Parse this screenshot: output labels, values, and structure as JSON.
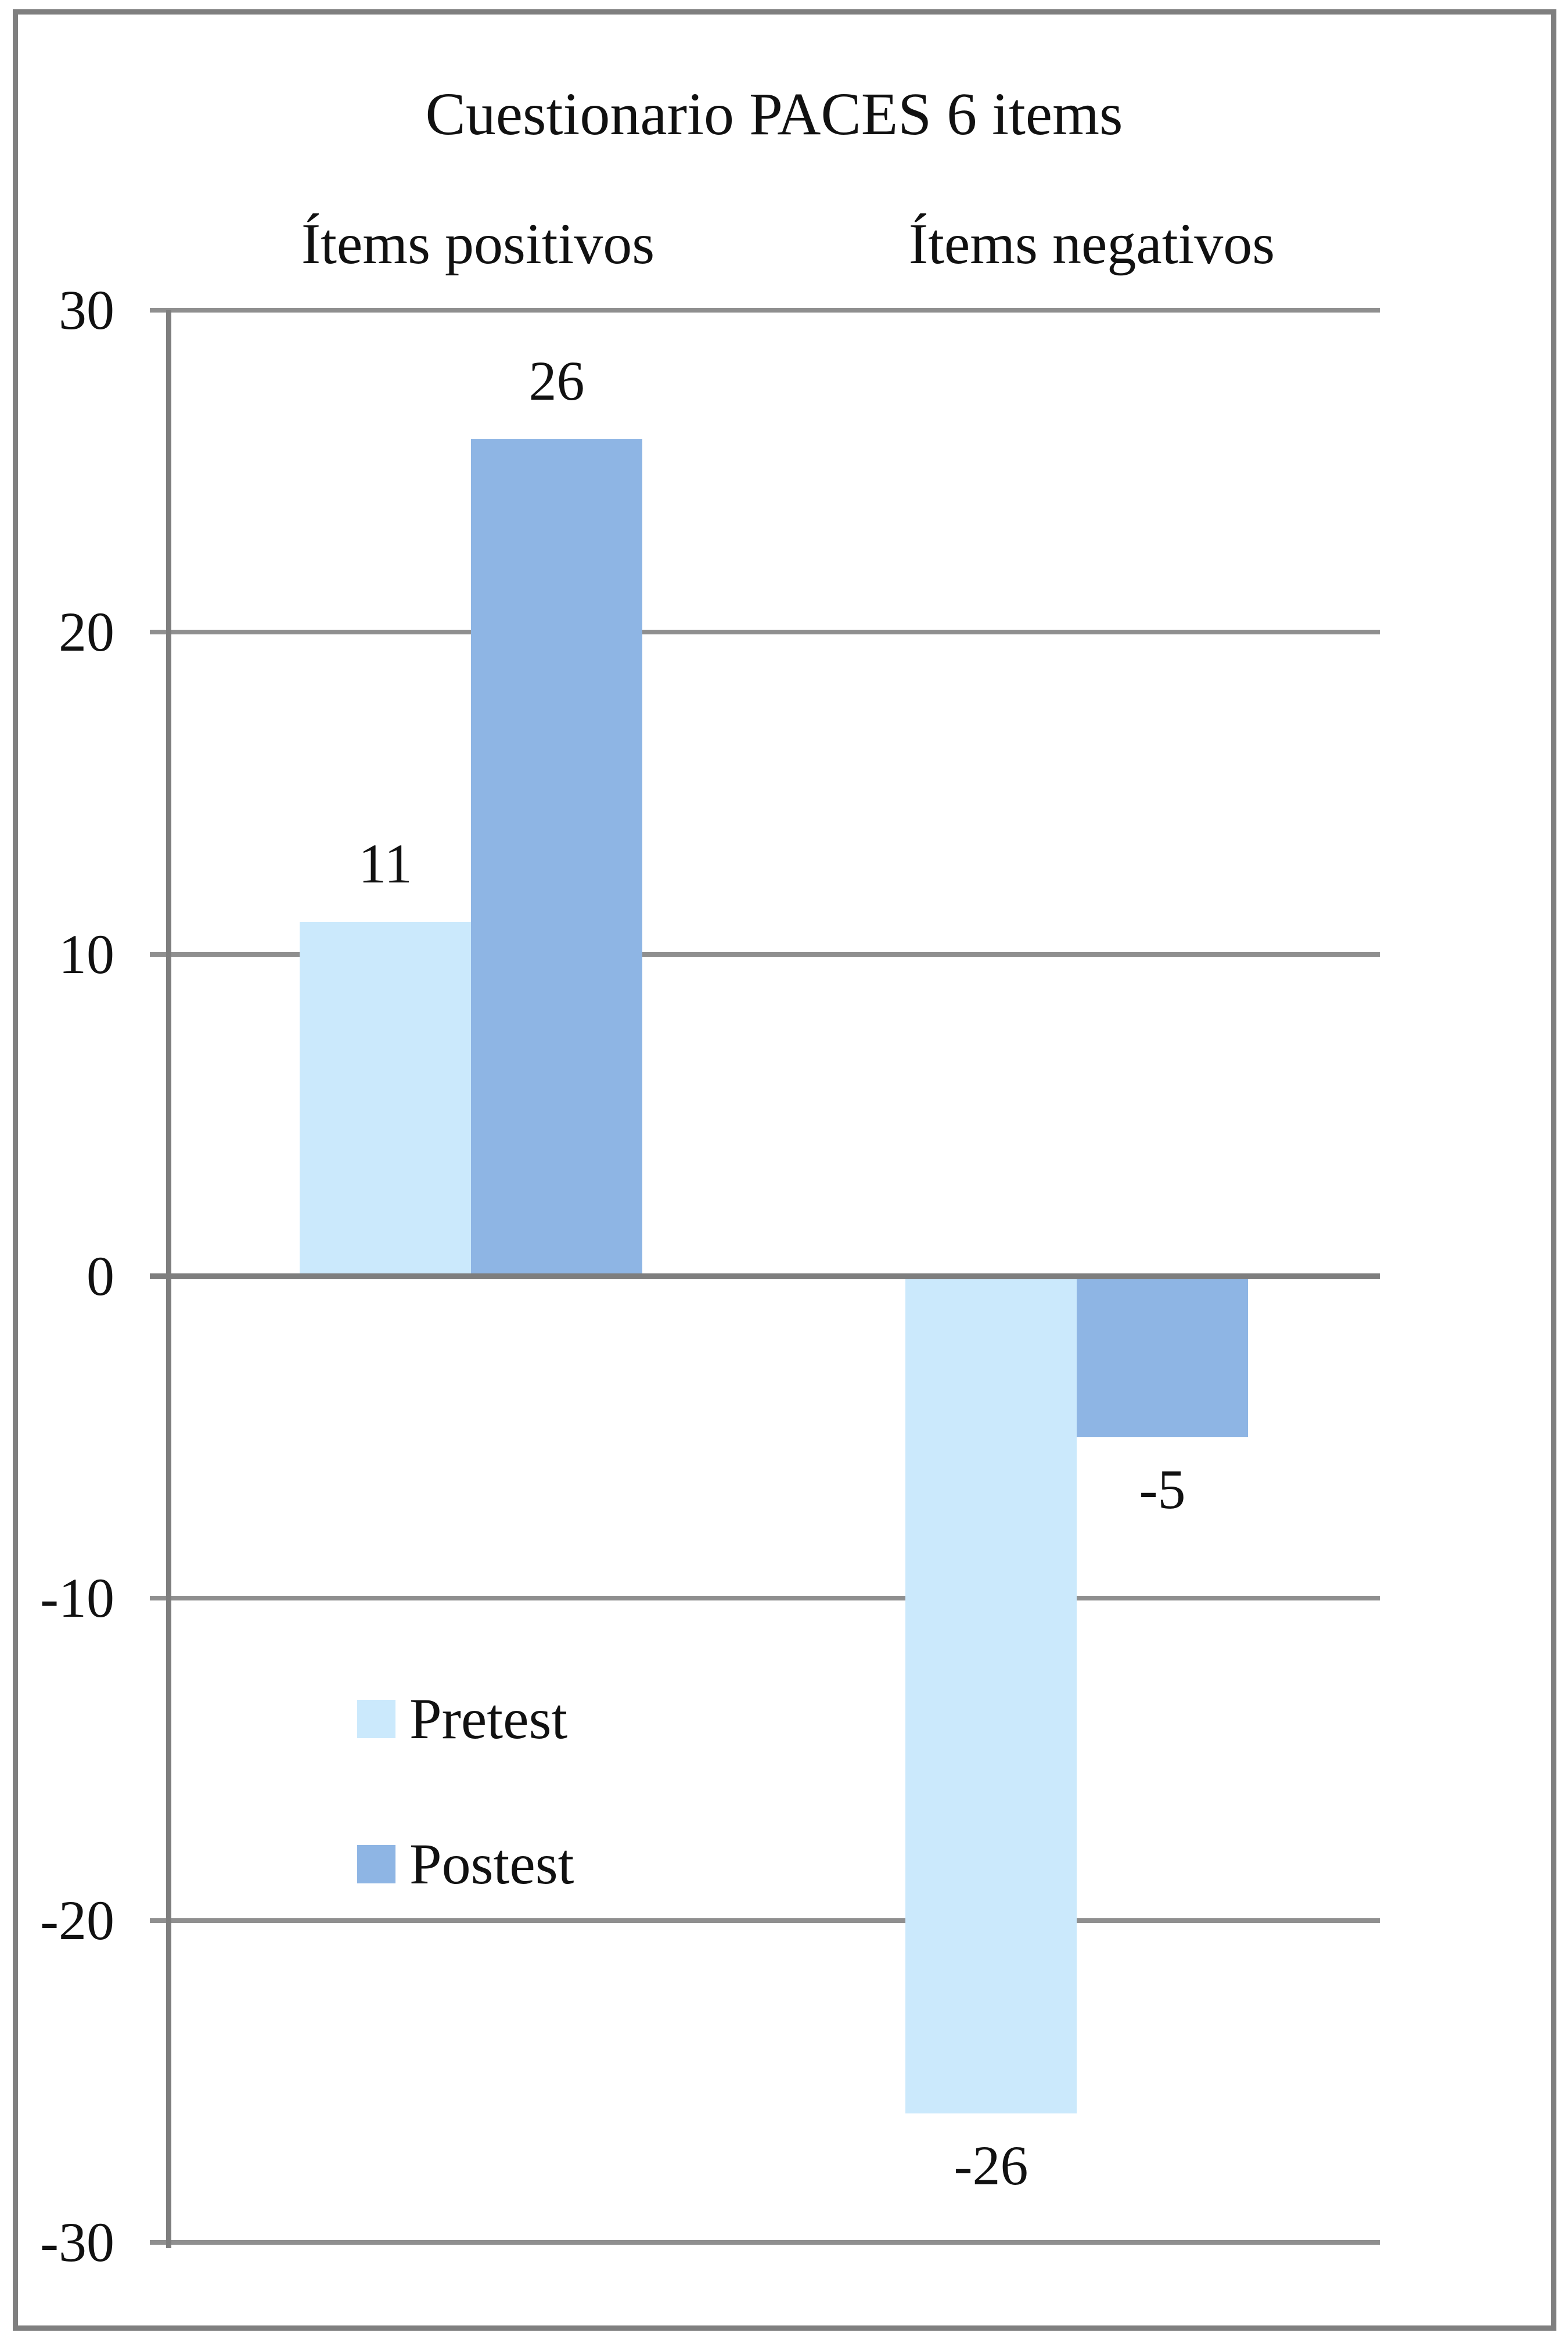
{
  "chart_data": {
    "type": "bar",
    "title": "Cuestionario PACES 6 items",
    "categories": [
      "Ítems positivos",
      "Ítems negativos"
    ],
    "series": [
      {
        "name": "Pretest",
        "color": "#CBE9FC",
        "values": [
          11,
          -26
        ],
        "labels": [
          "11",
          "-26"
        ]
      },
      {
        "name": "Postest",
        "color": "#8EB5E4",
        "values": [
          26,
          -5
        ],
        "labels": [
          "26",
          "-5"
        ]
      }
    ],
    "y_axis": {
      "min": -30,
      "max": 30,
      "step": 10,
      "tick_labels": [
        "30",
        "20",
        "10",
        "0",
        "-10",
        "-20",
        "-30"
      ],
      "grid": true
    },
    "legend": {
      "position": "inside bottom-left",
      "entries": [
        "Pretest",
        "Postest"
      ]
    },
    "styles": {
      "background": "#FFFFFF",
      "grid_color": "#8F8F8F",
      "axis_color": "#7E7E7E",
      "border_color": "#7F7F7F",
      "text_color": "#111111"
    }
  }
}
